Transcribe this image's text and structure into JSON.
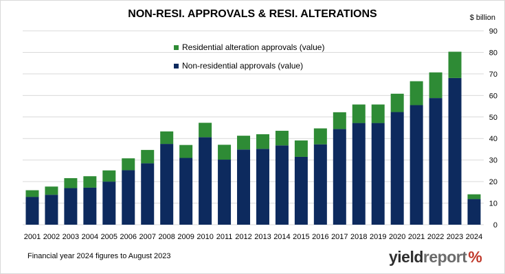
{
  "chart_data": {
    "type": "bar",
    "stacked": true,
    "title": "NON-RESI. APPROVALS & RESI. ALTERATIONS",
    "ylabel": "$ billion",
    "ylim": [
      0,
      90
    ],
    "yticks": [
      0,
      10,
      20,
      30,
      40,
      50,
      60,
      70,
      80,
      90
    ],
    "grid": true,
    "legend_position": "top-center",
    "categories": [
      "2001",
      "2002",
      "2003",
      "2004",
      "2005",
      "2006",
      "2007",
      "2008",
      "2009",
      "2010",
      "2011",
      "2012",
      "2013",
      "2014",
      "2015",
      "2016",
      "2017",
      "2018",
      "2019",
      "2020",
      "2021",
      "2022",
      "2023",
      "2024"
    ],
    "series": [
      {
        "name": "Non-residential approvals (value)",
        "color": "#0d2a5e",
        "values": [
          12.9,
          13.9,
          17.0,
          17.2,
          20.0,
          25.3,
          28.5,
          37.5,
          31.0,
          40.6,
          30.2,
          34.9,
          35.2,
          36.8,
          31.5,
          37.3,
          44.4,
          47.2,
          47.2,
          52.3,
          55.5,
          58.8,
          68.1,
          11.9
        ]
      },
      {
        "name": "Residential alteration approvals (value)",
        "color": "#2e8b35",
        "values": [
          3.1,
          3.8,
          4.6,
          5.3,
          5.2,
          5.5,
          6.2,
          5.8,
          6.0,
          6.7,
          6.9,
          6.4,
          6.8,
          6.8,
          7.6,
          7.4,
          7.8,
          8.6,
          8.6,
          8.5,
          11.1,
          11.9,
          12.2,
          2.2
        ]
      }
    ],
    "note": "Financial year 2024 figures to August 2023"
  },
  "brand": {
    "part1": "yield",
    "part2": "report",
    "symbol": "%"
  }
}
